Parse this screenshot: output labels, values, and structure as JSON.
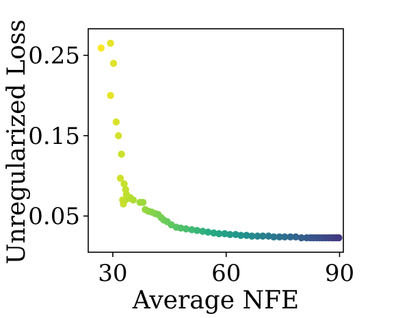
{
  "chart_data": {
    "type": "scatter",
    "title": "",
    "xlabel": "Average NFE",
    "ylabel": "Unregularized Loss",
    "xlim": [
      23.5,
      91
    ],
    "ylim": [
      0.005,
      0.283
    ],
    "xticks": [
      30,
      60,
      90
    ],
    "xtick_labels": [
      "30",
      "60",
      "90"
    ],
    "yticks": [
      0.05,
      0.15,
      0.25
    ],
    "ytick_labels": [
      "0.05",
      "0.15",
      "0.25"
    ],
    "grid": false,
    "legend": "none",
    "colormap": "viridis (color follows Average NFE: yellow at low NFE, dark blue at high NFE)",
    "x": [
      26.9,
      29.4,
      30.2,
      29.4,
      30.9,
      31.5,
      32.3,
      32.0,
      33.0,
      33.4,
      33.6,
      33.9,
      34.6,
      32.6,
      32.8,
      33.3,
      34.1,
      34.5,
      35.4,
      37.2,
      38.0,
      38.6,
      39.4,
      40.3,
      41.2,
      42.0,
      42.8,
      43.5,
      44.4,
      45.5,
      46.8,
      48.0,
      49.4,
      50.9,
      52.3,
      53.8,
      55.2,
      56.7,
      58.1,
      59.6,
      61.0,
      62.5,
      63.9,
      65.4,
      66.8,
      68.3,
      69.7,
      71.2,
      72.6,
      74.1,
      75.5,
      77.0,
      78.4,
      79.9,
      81.3,
      82.3,
      83.1,
      83.9,
      84.7,
      85.5,
      86.3,
      87.1,
      87.9,
      88.6,
      89.2,
      89.8
    ],
    "y": [
      0.259,
      0.265,
      0.24,
      0.2,
      0.167,
      0.15,
      0.127,
      0.097,
      0.09,
      0.083,
      0.077,
      0.073,
      0.073,
      0.07,
      0.065,
      0.07,
      0.072,
      0.072,
      0.07,
      0.067,
      0.067,
      0.058,
      0.056,
      0.055,
      0.053,
      0.052,
      0.048,
      0.045,
      0.043,
      0.039,
      0.036,
      0.035,
      0.034,
      0.033,
      0.032,
      0.031,
      0.03,
      0.029,
      0.028,
      0.028,
      0.027,
      0.027,
      0.026,
      0.026,
      0.025,
      0.025,
      0.025,
      0.025,
      0.024,
      0.024,
      0.024,
      0.024,
      0.024,
      0.023,
      0.023,
      0.023,
      0.023,
      0.023,
      0.023,
      0.023,
      0.023,
      0.023,
      0.023,
      0.023,
      0.023,
      0.023
    ]
  }
}
